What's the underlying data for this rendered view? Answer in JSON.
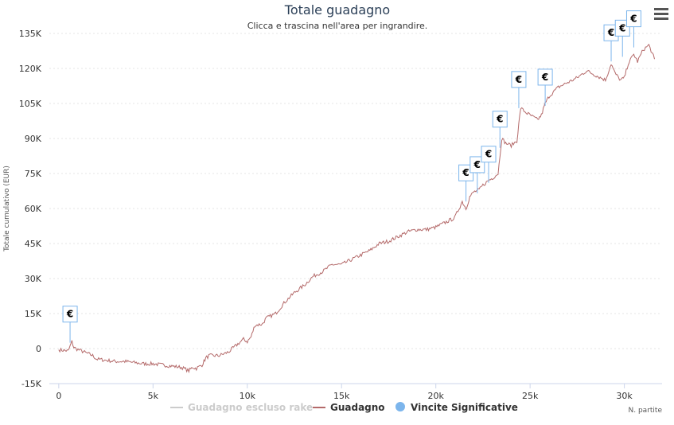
{
  "chart_data": {
    "type": "line",
    "title": "Totale guadagno",
    "subtitle": "Clicca e trascina nell'area per ingrandire.",
    "xlabel": "N. partite",
    "ylabel": "Totale cumulativo (EUR)",
    "xlim": [
      -500,
      32000
    ],
    "ylim": [
      -15000,
      135000
    ],
    "x_ticks": [
      0,
      5000,
      10000,
      15000,
      20000,
      25000,
      30000
    ],
    "x_tick_labels": [
      "0",
      "5k",
      "10k",
      "15k",
      "20k",
      "25k",
      "30k"
    ],
    "y_ticks": [
      -15000,
      0,
      15000,
      30000,
      45000,
      60000,
      75000,
      90000,
      105000,
      120000,
      135000
    ],
    "y_tick_labels": [
      "-15K",
      "0",
      "15K",
      "30K",
      "45K",
      "60K",
      "75K",
      "90K",
      "105K",
      "120K",
      "135K"
    ],
    "grid": true,
    "legend_position": "bottom",
    "series": [
      {
        "name": "Guadagno escluso rake",
        "color": "#cccccc",
        "visible": false,
        "x": [],
        "y": []
      },
      {
        "name": "Guadagno",
        "color": "#b46a6a",
        "visible": true,
        "x": [
          0,
          500,
          700,
          800,
          900,
          1200,
          1800,
          2000,
          2500,
          3000,
          3500,
          4000,
          4500,
          5000,
          5500,
          6000,
          6500,
          6900,
          7100,
          7300,
          7600,
          7800,
          8000,
          8500,
          9000,
          9500,
          9800,
          10000,
          10200,
          10400,
          10800,
          11000,
          11500,
          12000,
          12500,
          13000,
          13500,
          14000,
          14500,
          15000,
          15500,
          16000,
          16500,
          17000,
          17500,
          18000,
          18500,
          19000,
          19500,
          20000,
          20500,
          21000,
          21400,
          21600,
          21800,
          22000,
          22300,
          22500,
          22800,
          23000,
          23300,
          23500,
          23700,
          24000,
          24300,
          24500,
          24800,
          25000,
          25400,
          25600,
          25800,
          26000,
          26500,
          27000,
          27500,
          28000,
          28500,
          29000,
          29300,
          29500,
          29800,
          30000,
          30200,
          30500,
          30700,
          31000,
          31300,
          31600
        ],
        "y": [
          -500,
          -1000,
          3000,
          500,
          0,
          -1000,
          -3000,
          -4500,
          -5000,
          -5500,
          -5500,
          -6000,
          -6500,
          -6500,
          -7000,
          -7500,
          -8000,
          -9500,
          -8000,
          -8500,
          -7000,
          -4000,
          -3000,
          -3000,
          -1500,
          2000,
          4000,
          3000,
          5000,
          10000,
          10500,
          13000,
          15000,
          20000,
          24000,
          27000,
          31000,
          33000,
          36000,
          36000,
          38000,
          40000,
          42000,
          45000,
          46000,
          48000,
          50000,
          51000,
          51000,
          52000,
          54000,
          56000,
          63000,
          60000,
          65000,
          67000,
          68000,
          70000,
          72000,
          73000,
          75000,
          90000,
          88000,
          87000,
          89000,
          103000,
          101000,
          100000,
          98000,
          100000,
          105000,
          108000,
          112000,
          114000,
          116000,
          119000,
          117000,
          115000,
          122000,
          118000,
          115000,
          116000,
          122000,
          126000,
          123000,
          128000,
          130000,
          124000
        ],
        "flags": [
          {
            "x": 600,
            "y": 2500,
            "label": "€"
          },
          {
            "x": 21600,
            "y": 63000,
            "label": "€"
          },
          {
            "x": 22200,
            "y": 66500,
            "label": "€"
          },
          {
            "x": 22800,
            "y": 71000,
            "label": "€"
          },
          {
            "x": 23400,
            "y": 86000,
            "label": "€"
          },
          {
            "x": 24400,
            "y": 103000,
            "label": "€"
          },
          {
            "x": 25800,
            "y": 104000,
            "label": "€"
          },
          {
            "x": 29300,
            "y": 123000,
            "label": "€"
          },
          {
            "x": 29900,
            "y": 125000,
            "label": "€"
          },
          {
            "x": 30500,
            "y": 129000,
            "label": "€"
          }
        ]
      },
      {
        "name": "Vincite Significative",
        "color": "#7cb5ec",
        "visible": true
      }
    ]
  },
  "menu": {
    "icon": "hamburger-menu-icon"
  }
}
